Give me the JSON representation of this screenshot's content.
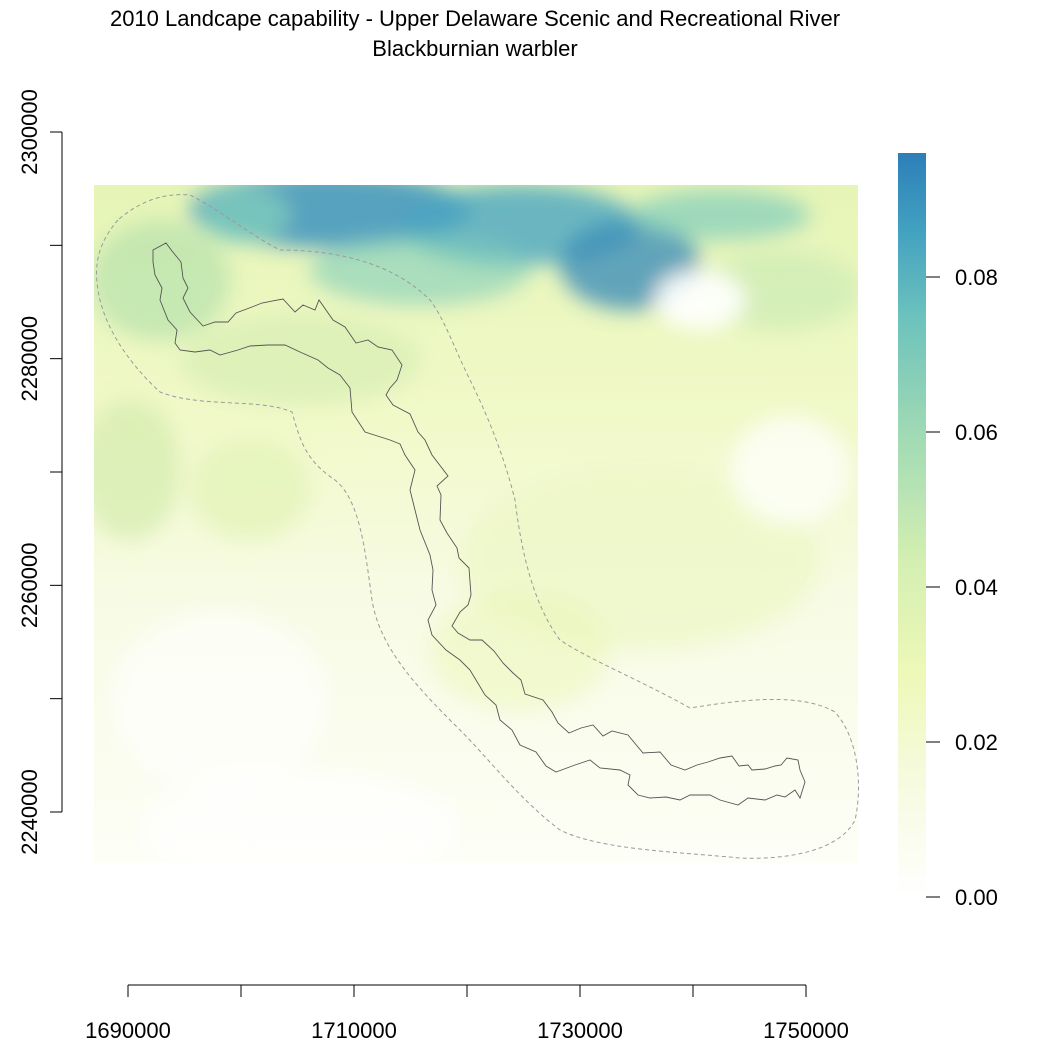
{
  "title": {
    "line1": "2010 Landcape capability - Upper Delaware Scenic and Recreational River",
    "line2": "Blackburnian warbler"
  },
  "map": {
    "x_ticks": [
      "1690000",
      "1710000",
      "1730000",
      "1750000"
    ],
    "x_tick_values": [
      1690000,
      1700000,
      1710000,
      1720000,
      1730000,
      1740000,
      1750000
    ],
    "y_ticks": [
      "2240000",
      "2260000",
      "2280000",
      "2300000"
    ],
    "y_tick_values": [
      2240000,
      2250000,
      2260000,
      2270000,
      2280000,
      2290000,
      2300000
    ],
    "x_range": [
      1687000,
      1755000
    ],
    "y_range": [
      2235000,
      2296000
    ],
    "layers": [
      "river corridor boundary",
      "buffer boundary (dashed)"
    ]
  },
  "legend": {
    "labels": [
      "0.00",
      "0.02",
      "0.04",
      "0.06",
      "0.08"
    ],
    "values": [
      0.0,
      0.02,
      0.04,
      0.06,
      0.08
    ],
    "max": 0.096,
    "colors": [
      "#ffffff",
      "#f4fbd3",
      "#edf8b1",
      "#c7e9b4",
      "#7fcdbb",
      "#41b6c4",
      "#2c7fb8"
    ]
  }
}
